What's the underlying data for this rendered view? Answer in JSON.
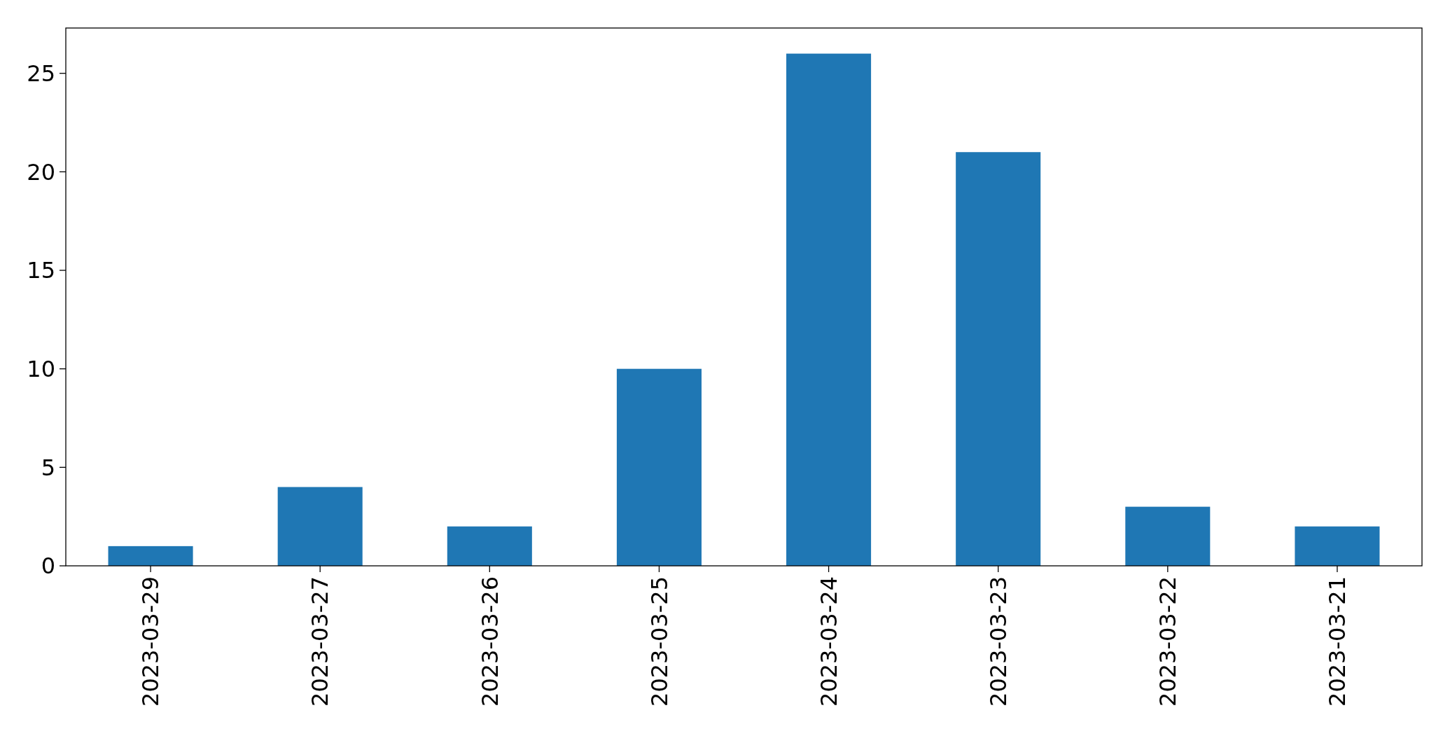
{
  "chart_data": {
    "type": "bar",
    "categories": [
      "2023-03-29",
      "2023-03-27",
      "2023-03-26",
      "2023-03-25",
      "2023-03-24",
      "2023-03-23",
      "2023-03-22",
      "2023-03-21"
    ],
    "values": [
      1,
      4,
      2,
      10,
      26,
      21,
      3,
      2
    ],
    "color": "#1f77b4",
    "ylim": [
      0,
      27.3
    ],
    "yticks": [
      0,
      5,
      10,
      15,
      20,
      25
    ]
  }
}
